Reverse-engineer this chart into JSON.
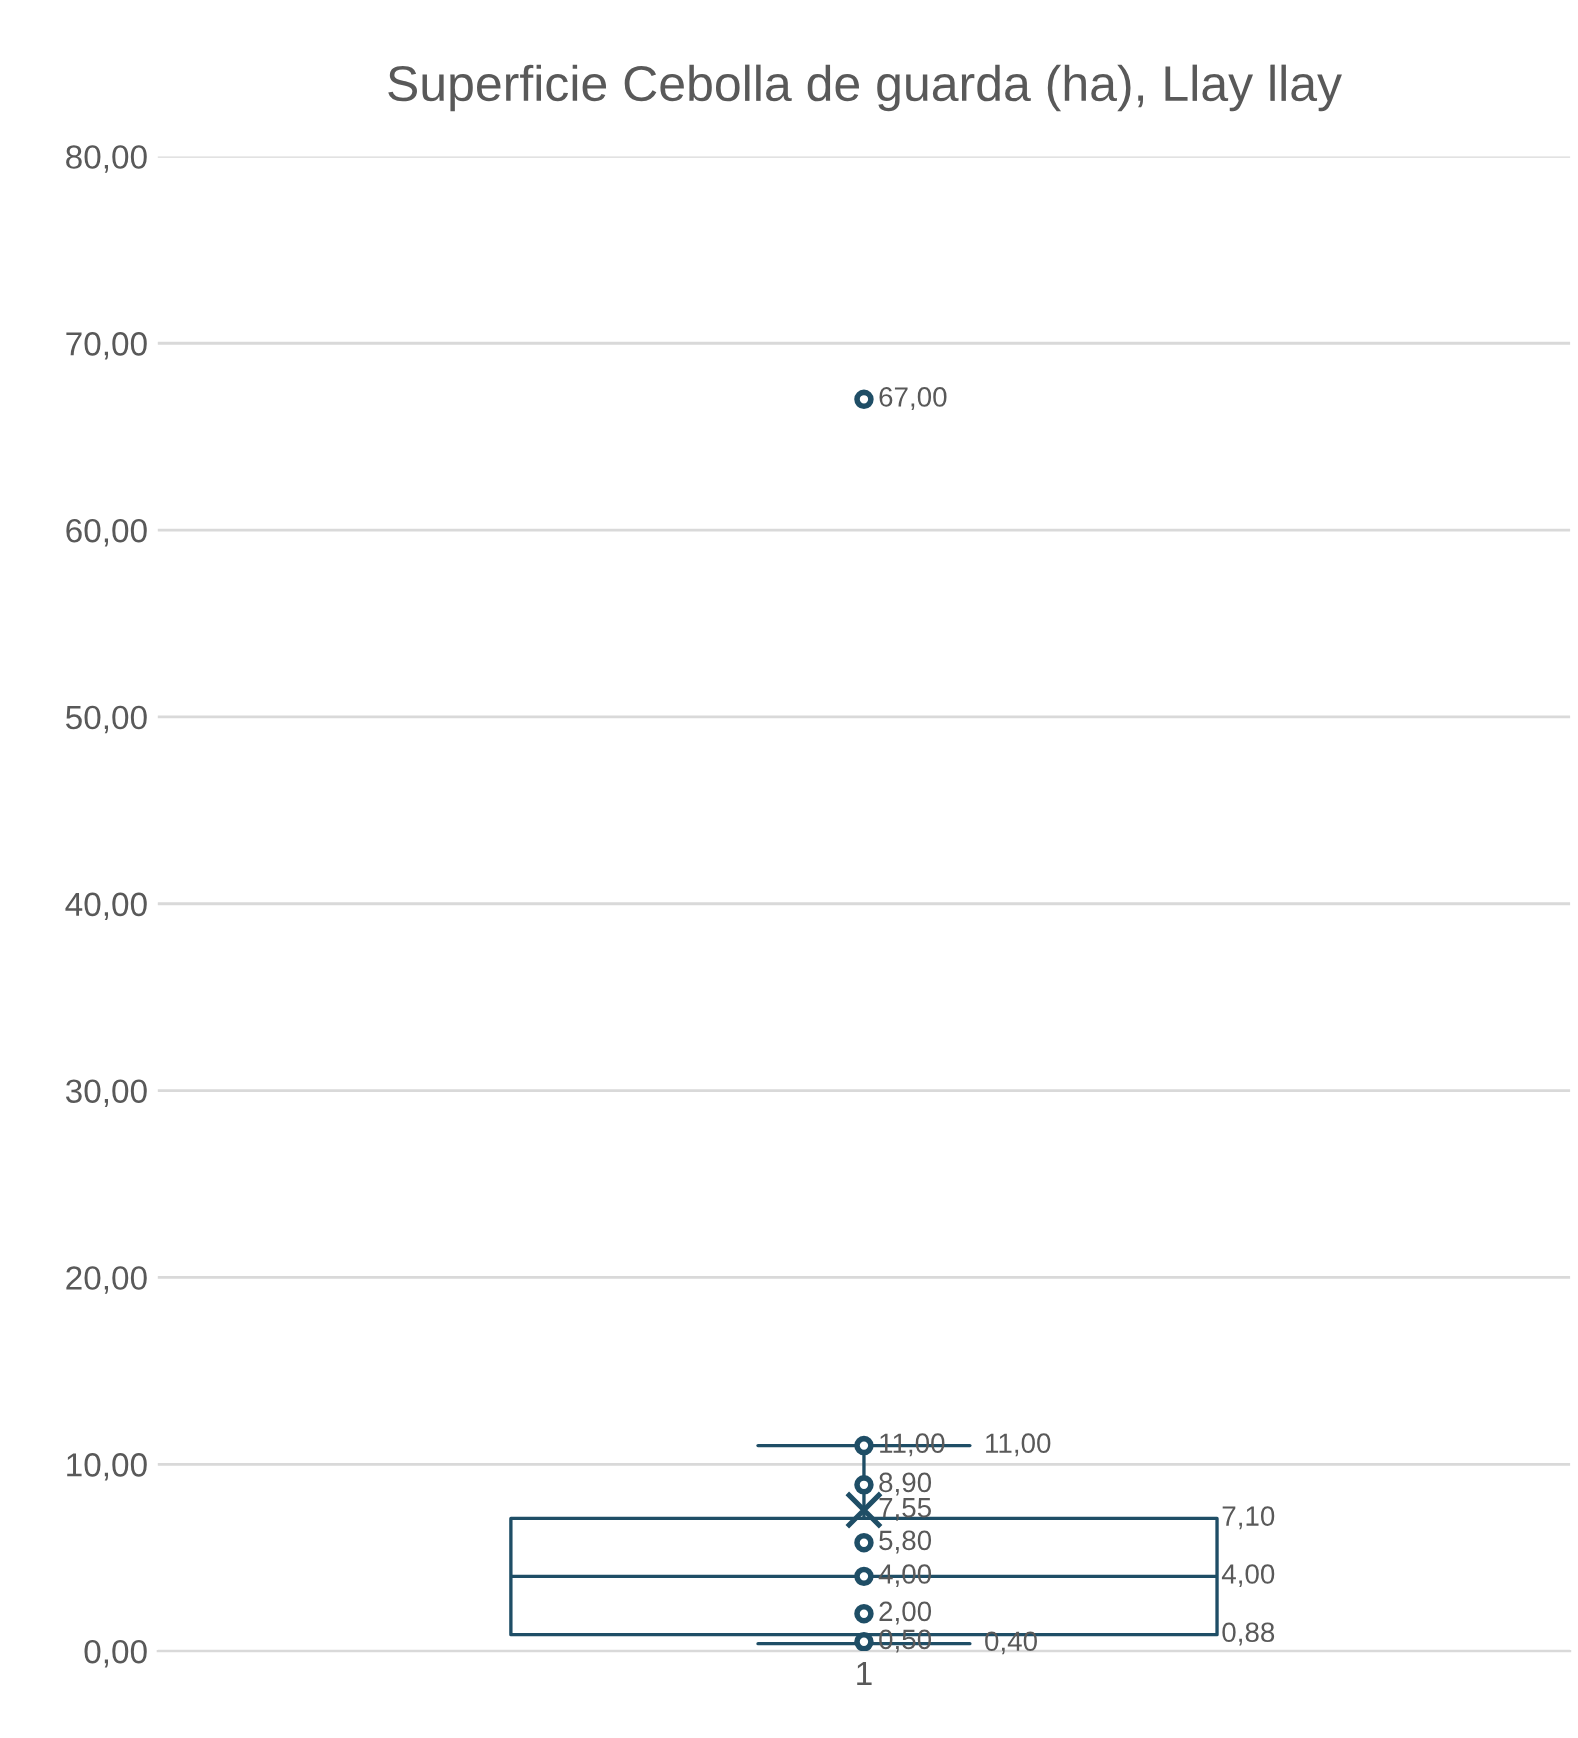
{
  "chart_data": {
    "type": "box",
    "title": "Superficie Cebolla de guarda (ha), Llay llay",
    "categories": [
      "1"
    ],
    "boxes": [
      {
        "low": 0.4,
        "q1": 0.88,
        "median": 4.0,
        "q3": 7.1,
        "high": 11.0,
        "mean": 7.55,
        "outliers": [
          67.0
        ]
      }
    ],
    "color": "#1f4e66",
    "series": [
      {
        "type": "scatter",
        "color": "#1f4e66",
        "x": [
          "1",
          "1",
          "1",
          "1",
          "1",
          "1"
        ],
        "values": [
          0.5,
          2.0,
          4.0,
          5.8,
          8.9,
          11.0
        ],
        "value_labels": [
          "0,50",
          "2,00",
          "4,00",
          "5,80",
          "8,90",
          "11,00"
        ]
      }
    ],
    "annotations": [
      {
        "text": "7,55",
        "x": "1",
        "y": 7.55
      },
      "11,00",
      "7,10",
      "4,00",
      "0,88",
      "0,40",
      "67,00"
    ],
    "ylim": [
      0,
      80
    ],
    "yticks": [
      {
        "value": 0,
        "label": "0,00"
      },
      {
        "value": 10,
        "label": "10,00"
      },
      {
        "value": 20,
        "label": "20,00"
      },
      {
        "value": 30,
        "label": "30,00"
      },
      {
        "value": 40,
        "label": "40,00"
      },
      {
        "value": 50,
        "label": "50,00"
      },
      {
        "value": 60,
        "label": "60,00"
      },
      {
        "value": 70,
        "label": "70,00"
      },
      {
        "value": 80,
        "label": "80,00"
      }
    ],
    "grid": "y",
    "marker": "circle"
  }
}
